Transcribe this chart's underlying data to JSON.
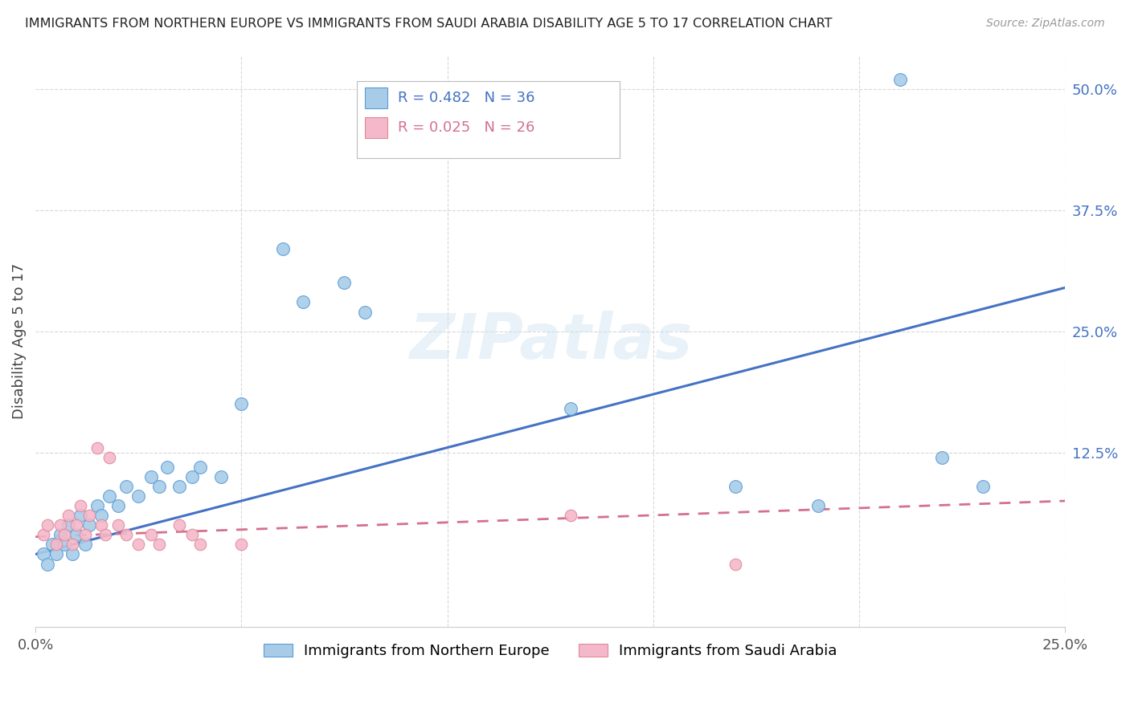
{
  "title": "IMMIGRANTS FROM NORTHERN EUROPE VS IMMIGRANTS FROM SAUDI ARABIA DISABILITY AGE 5 TO 17 CORRELATION CHART",
  "source": "Source: ZipAtlas.com",
  "ylabel": "Disability Age 5 to 17",
  "xlim": [
    0.0,
    0.25
  ],
  "ylim": [
    -0.055,
    0.535
  ],
  "ytick_vals_right": [
    0.5,
    0.375,
    0.25,
    0.125
  ],
  "ytick_labels_right": [
    "50.0%",
    "37.5%",
    "25.0%",
    "12.5%"
  ],
  "blue_scatter_x": [
    0.002,
    0.003,
    0.004,
    0.005,
    0.006,
    0.007,
    0.008,
    0.009,
    0.01,
    0.011,
    0.012,
    0.013,
    0.015,
    0.016,
    0.018,
    0.02,
    0.022,
    0.025,
    0.028,
    0.03,
    0.032,
    0.035,
    0.038,
    0.04,
    0.045,
    0.05,
    0.06,
    0.065,
    0.075,
    0.08,
    0.13,
    0.17,
    0.19,
    0.21,
    0.22,
    0.23
  ],
  "blue_scatter_y": [
    0.02,
    0.01,
    0.03,
    0.02,
    0.04,
    0.03,
    0.05,
    0.02,
    0.04,
    0.06,
    0.03,
    0.05,
    0.07,
    0.06,
    0.08,
    0.07,
    0.09,
    0.08,
    0.1,
    0.09,
    0.11,
    0.09,
    0.1,
    0.11,
    0.1,
    0.175,
    0.335,
    0.28,
    0.3,
    0.27,
    0.17,
    0.09,
    0.07,
    0.51,
    0.12,
    0.09
  ],
  "pink_scatter_x": [
    0.002,
    0.003,
    0.005,
    0.006,
    0.007,
    0.008,
    0.009,
    0.01,
    0.011,
    0.012,
    0.013,
    0.015,
    0.016,
    0.017,
    0.018,
    0.02,
    0.022,
    0.025,
    0.028,
    0.03,
    0.035,
    0.038,
    0.04,
    0.05,
    0.13,
    0.17
  ],
  "pink_scatter_y": [
    0.04,
    0.05,
    0.03,
    0.05,
    0.04,
    0.06,
    0.03,
    0.05,
    0.07,
    0.04,
    0.06,
    0.13,
    0.05,
    0.04,
    0.12,
    0.05,
    0.04,
    0.03,
    0.04,
    0.03,
    0.05,
    0.04,
    0.03,
    0.03,
    0.06,
    0.01
  ],
  "blue_line_x": [
    0.0,
    0.25
  ],
  "blue_line_y": [
    0.02,
    0.295
  ],
  "pink_line_x": [
    0.0,
    0.25
  ],
  "pink_line_y": [
    0.038,
    0.075
  ],
  "blue_color": "#a8cce8",
  "pink_color": "#f4b8ca",
  "blue_line_color": "#4472c4",
  "pink_line_color": "#d47090",
  "blue_edge_color": "#5b9bd5",
  "pink_edge_color": "#e0899a",
  "R_blue": "0.482",
  "N_blue": "36",
  "R_pink": "0.025",
  "N_pink": "26",
  "legend_label_blue": "Immigrants from Northern Europe",
  "legend_label_pink": "Immigrants from Saudi Arabia",
  "watermark": "ZIPatlas",
  "grid_color": "#d8d8d8",
  "background_color": "#ffffff"
}
